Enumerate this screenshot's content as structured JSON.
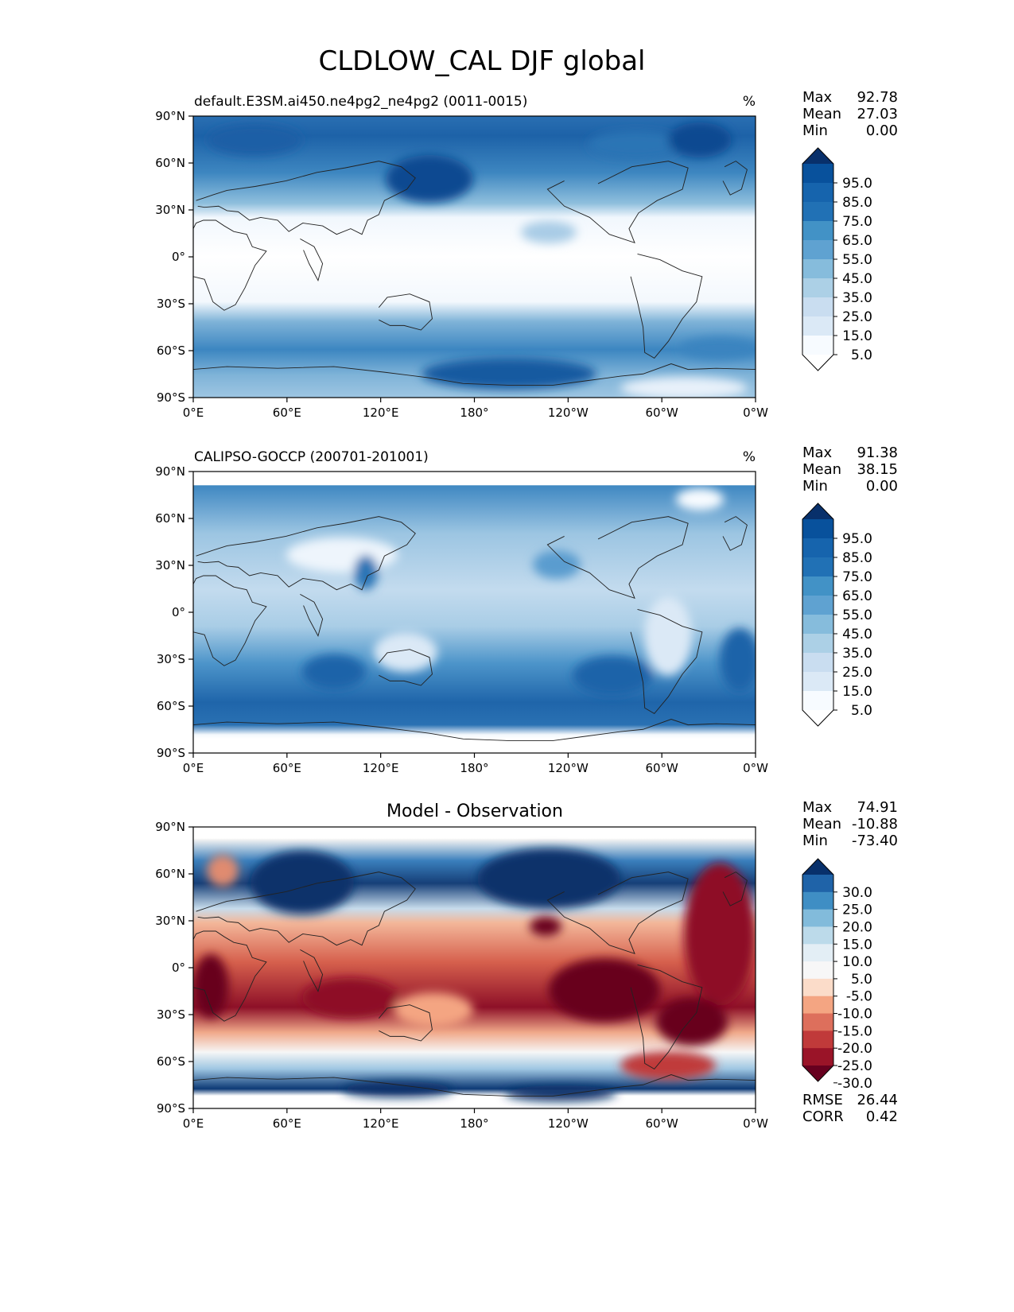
{
  "title": "CLDLOW_CAL DJF global",
  "lat_ticks": [
    "90°N",
    "60°N",
    "30°N",
    "0°",
    "30°S",
    "60°S",
    "90°S"
  ],
  "lon_ticks": [
    "0°E",
    "60°E",
    "120°E",
    "180°",
    "120°W",
    "60°W",
    "0°W"
  ],
  "panels": [
    {
      "id": "model",
      "title_left": "default.E3SM.ai450.ne4pg2_ne4pg2 (0011-0015)",
      "title_center": "",
      "units": "%",
      "stats": [
        {
          "label": "Max",
          "value": "92.78"
        },
        {
          "label": "Mean",
          "value": "27.03"
        },
        {
          "label": "Min",
          "value": "0.00"
        }
      ],
      "colorbar": {
        "labels": [
          "95.0",
          "85.0",
          "75.0",
          "65.0",
          "55.0",
          "45.0",
          "35.0",
          "25.0",
          "15.0",
          "5.0"
        ],
        "colors": [
          "#08306b",
          "#08519c",
          "#1664ad",
          "#2171b5",
          "#4292c6",
          "#5fa2d1",
          "#86bcdc",
          "#acd0e6",
          "#c9ddf0",
          "#dbe9f6",
          "#f7fbff",
          "#ffffff"
        ]
      },
      "footer_stats": []
    },
    {
      "id": "obs",
      "title_left": "CALIPSO-GOCCP (200701-201001)",
      "title_center": "",
      "units": "%",
      "stats": [
        {
          "label": "Max",
          "value": "91.38"
        },
        {
          "label": "Mean",
          "value": "38.15"
        },
        {
          "label": "Min",
          "value": "0.00"
        }
      ],
      "colorbar": {
        "labels": [
          "95.0",
          "85.0",
          "75.0",
          "65.0",
          "55.0",
          "45.0",
          "35.0",
          "25.0",
          "15.0",
          "5.0"
        ],
        "colors": [
          "#08306b",
          "#08519c",
          "#1664ad",
          "#2171b5",
          "#4292c6",
          "#5fa2d1",
          "#86bcdc",
          "#acd0e6",
          "#c9ddf0",
          "#dbe9f6",
          "#f7fbff",
          "#ffffff"
        ]
      },
      "footer_stats": []
    },
    {
      "id": "diff",
      "title_left": "",
      "title_center": "Model - Observation",
      "units": "",
      "stats": [
        {
          "label": "Max",
          "value": "74.91"
        },
        {
          "label": "Mean",
          "value": "-10.88"
        },
        {
          "label": "Min",
          "value": "-73.40"
        }
      ],
      "colorbar": {
        "labels": [
          "30.0",
          "25.0",
          "20.0",
          "15.0",
          "10.0",
          "5.0",
          "-5.0",
          "-10.0",
          "-15.0",
          "-20.0",
          "-25.0",
          "-30.0"
        ],
        "colors": [
          "#08306b",
          "#1f63a8",
          "#3f8ec4",
          "#82bbdb",
          "#bcdaea",
          "#e3eef5",
          "#f7f7f7",
          "#fbdcc9",
          "#f4a582",
          "#dd6f5c",
          "#c03a3a",
          "#9a1428",
          "#67001f"
        ]
      },
      "footer_stats": [
        {
          "label": "RMSE",
          "value": "26.44"
        },
        {
          "label": "CORR",
          "value": "0.42"
        }
      ]
    }
  ]
}
